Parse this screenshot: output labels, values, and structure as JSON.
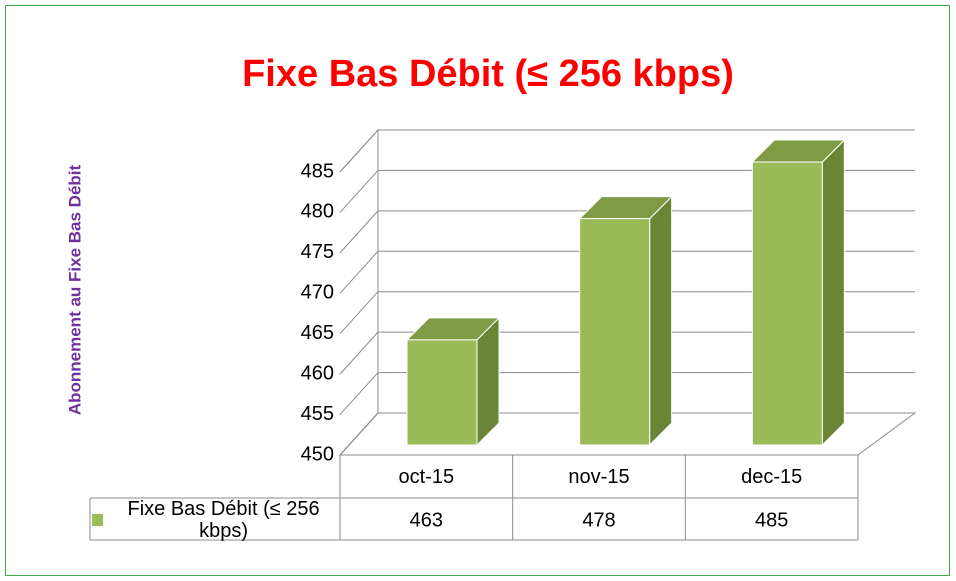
{
  "chart_data": {
    "type": "bar3d",
    "title": "Fixe Bas Débit (≤ 256 kbps)",
    "y_label": "Abonnement au Fixe Bas Débit",
    "categories": [
      "oct-15",
      "nov-15",
      "dec-15"
    ],
    "series": [
      {
        "name": "Fixe Bas Débit (≤ 256 kbps)",
        "color": "#9bbb59",
        "values": [
          463,
          478,
          485
        ]
      }
    ],
    "ylim": [
      450,
      485
    ],
    "yticks": [
      450,
      455,
      460,
      465,
      470,
      475,
      480,
      485
    ],
    "grid": true,
    "data_table": true
  }
}
